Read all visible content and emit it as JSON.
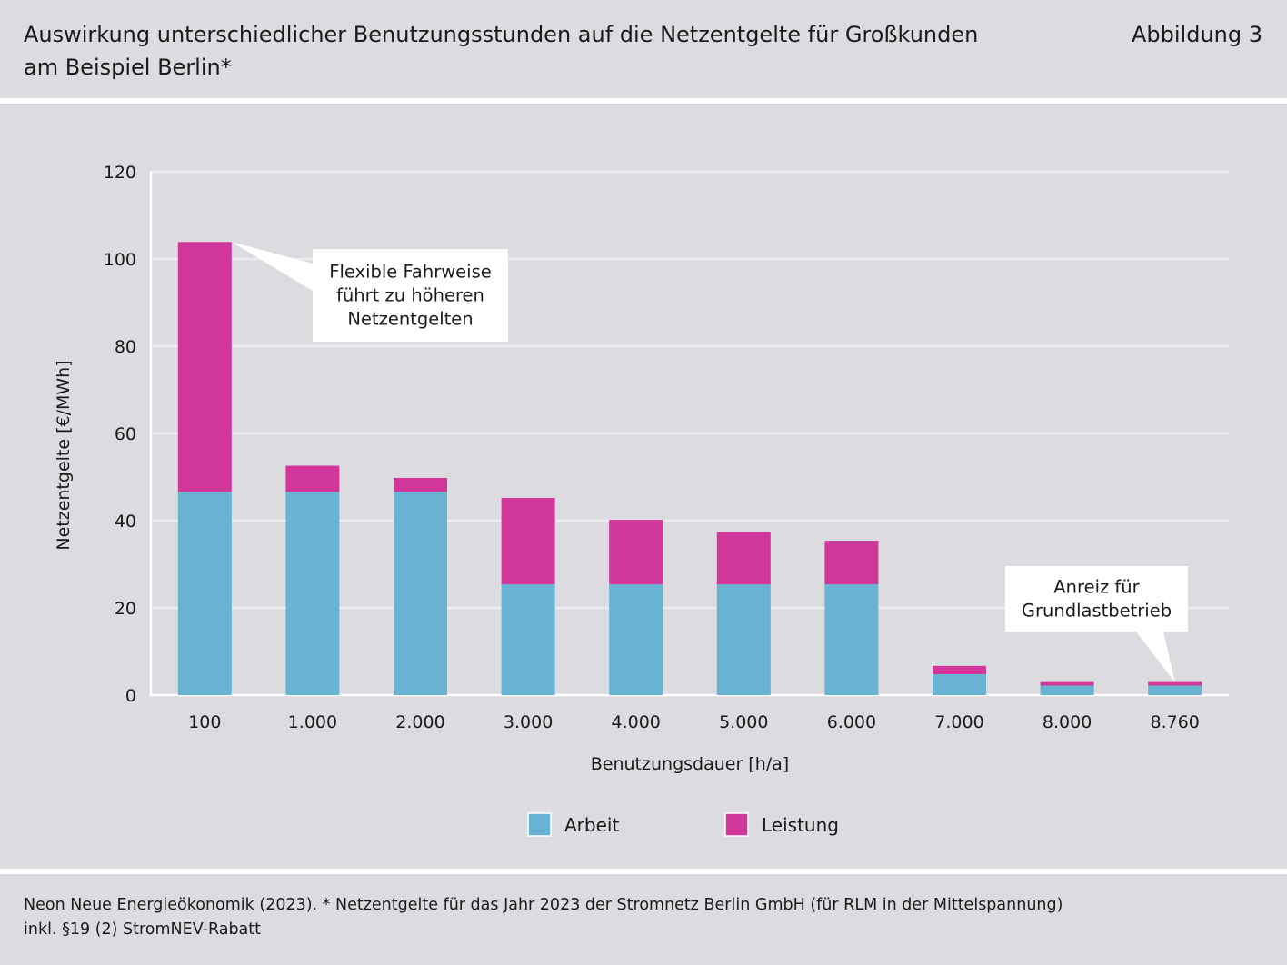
{
  "header": {
    "title_line1": "Auswirkung unterschiedlicher Benutzungsstunden auf die Netzentgelte für Großkunden",
    "title_line2": "am Beispiel Berlin*",
    "figure_label": "Abbildung 3"
  },
  "footer": {
    "line1": "Neon Neue Energieökonomik (2023). * Netzentgelte für das Jahr 2023 der Stromnetz Berlin GmbH (für RLM in der Mittelspannung)",
    "line2": "inkl. §19 (2) StromNEV-Rabatt"
  },
  "colors": {
    "arbeit": "#68b2d4",
    "leistung": "#d1369a",
    "background": "#dcdbe0",
    "grid": "#ececf0"
  },
  "chart_data": {
    "type": "bar",
    "stacked": true,
    "categories": [
      "100",
      "1.000",
      "2.000",
      "3.000",
      "4.000",
      "5.000",
      "6.000",
      "7.000",
      "8.000",
      "8.760"
    ],
    "series": [
      {
        "name": "Arbeit",
        "values": [
          46.6,
          46.6,
          46.6,
          25.4,
          25.4,
          25.4,
          25.4,
          4.8,
          2.2,
          2.2
        ]
      },
      {
        "name": "Leistung",
        "values": [
          57.3,
          6.0,
          3.2,
          19.8,
          14.8,
          12.0,
          10.0,
          1.9,
          0.8,
          0.8
        ]
      }
    ],
    "xlabel": "Benutzungsdauer [h/a]",
    "ylabel": "Netzentgelte [€/MWh]",
    "ylim": [
      0,
      120
    ],
    "yticks": [
      "0",
      "20",
      "40",
      "60",
      "80",
      "100",
      "120"
    ],
    "grid": true,
    "legend_position": "bottom-center",
    "annotations": [
      {
        "lines": [
          "Flexible Fahrweise",
          "führt zu höheren",
          "Netzentgelten"
        ],
        "target_category": "100"
      },
      {
        "lines": [
          "Anreiz für",
          "Grundlastbetrieb"
        ],
        "target_category": "8.760"
      }
    ]
  }
}
